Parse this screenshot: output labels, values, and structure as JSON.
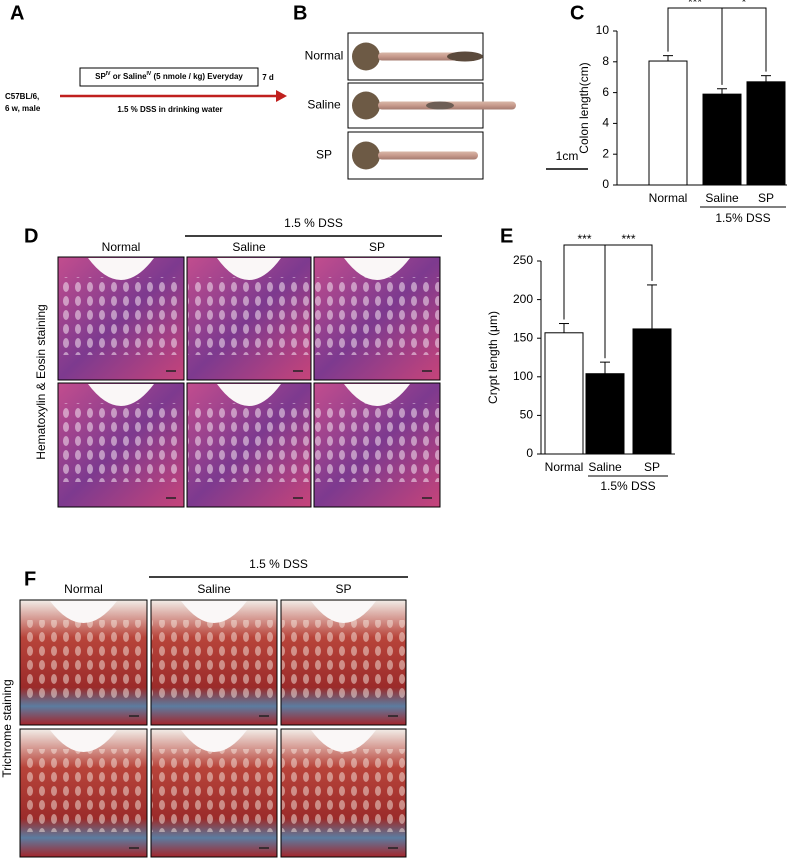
{
  "panel_labels": [
    "A",
    "B",
    "C",
    "D",
    "E",
    "F"
  ],
  "panel_a": {
    "subject": [
      "C57BL/6,",
      "6 w, male"
    ],
    "treatment": [
      "SP",
      "IV",
      " or Saline",
      "IV",
      " (5 nmole / kg) Everyday"
    ],
    "duration": "7 d",
    "condition": "1.5 % DSS in drinking water"
  },
  "panel_b": {
    "rows": [
      "Normal",
      "Saline",
      "SP"
    ],
    "scale_bar": "1cm"
  },
  "panel_d": {
    "group": "1.5 % DSS",
    "columns": [
      "Normal",
      "Saline",
      "SP"
    ],
    "stain": "Hematoxylin & Eosin staining"
  },
  "panel_f": {
    "group": "1.5 % DSS",
    "columns": [
      "Normal",
      "Saline",
      "SP"
    ],
    "stain": "Trichrome staining"
  },
  "chart_data": [
    {
      "type": "bar",
      "ylabel": "Colon length(cm)",
      "categories": [
        "Normal",
        "Saline",
        "SP"
      ],
      "values": [
        8.05,
        5.9,
        6.7
      ],
      "errors": [
        0.35,
        0.35,
        0.4
      ],
      "colors": [
        "#ffffff",
        "#000000",
        "#000000"
      ],
      "ylim": [
        0,
        10
      ],
      "yticks": [
        0,
        2,
        4,
        6,
        8,
        10
      ],
      "group_label": "1.5% DSS",
      "significance": [
        "***",
        "*"
      ]
    },
    {
      "type": "bar",
      "ylabel": "Crypt length (μm)",
      "categories": [
        "Normal",
        "Saline",
        "SP"
      ],
      "values": [
        157,
        104,
        162
      ],
      "errors": [
        12,
        15,
        57
      ],
      "colors": [
        "#ffffff",
        "#000000",
        "#000000"
      ],
      "ylim": [
        0,
        250
      ],
      "yticks": [
        0,
        50,
        100,
        150,
        200,
        250
      ],
      "group_label": "1.5% DSS",
      "significance": [
        "***",
        "***"
      ]
    }
  ]
}
